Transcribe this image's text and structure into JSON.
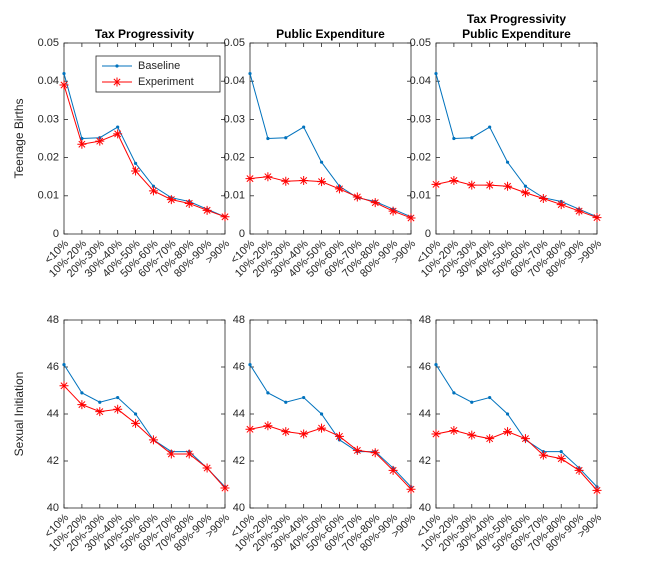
{
  "chart_data": [
    {
      "type": "line",
      "title": "Tax Progressivity",
      "y_label": "Teenage Births",
      "categories": [
        "<10%",
        "10%-20%",
        "20%-30%",
        "30%-40%",
        "40%-50%",
        "50%-60%",
        "60%-70%",
        "70%-80%",
        "80%-90%",
        ">90%"
      ],
      "series": [
        {
          "name": "Baseline",
          "color": "#0072bd",
          "values": [
            0.042,
            0.025,
            0.0252,
            0.028,
            0.0185,
            0.0125,
            0.0095,
            0.0085,
            0.0065,
            0.0045
          ]
        },
        {
          "name": "Experiment",
          "color": "#ff0000",
          "values": [
            0.039,
            0.0235,
            0.0243,
            0.0262,
            0.0165,
            0.0113,
            0.009,
            0.008,
            0.0062,
            0.0045
          ]
        }
      ],
      "ylim": [
        0,
        0.05
      ],
      "yticks": [
        0,
        0.01,
        0.02,
        0.03,
        0.04,
        0.05
      ],
      "legend": "northeast"
    },
    {
      "type": "line",
      "title": "Public Expenditure",
      "categories": [
        "<10%",
        "10%-20%",
        "20%-30%",
        "30%-40%",
        "40%-50%",
        "50%-60%",
        "60%-70%",
        "70%-80%",
        "80%-90%",
        ">90%"
      ],
      "series": [
        {
          "color": "#0072bd",
          "values": [
            0.042,
            0.025,
            0.0252,
            0.028,
            0.0188,
            0.0125,
            0.0095,
            0.0085,
            0.0065,
            0.0045
          ]
        },
        {
          "color": "#ff0000",
          "values": [
            0.0145,
            0.015,
            0.0138,
            0.014,
            0.0137,
            0.0118,
            0.0097,
            0.0082,
            0.006,
            0.0042
          ]
        }
      ],
      "ylim": [
        0,
        0.05
      ],
      "yticks": [
        0,
        0.01,
        0.02,
        0.03,
        0.04,
        0.05
      ]
    },
    {
      "type": "line",
      "title": [
        "Tax Progressivity",
        "Public Expenditure"
      ],
      "categories": [
        "<10%",
        "10%-20%",
        "20%-30%",
        "30%-40%",
        "40%-50%",
        "50%-60%",
        "60%-70%",
        "70%-80%",
        "80%-90%",
        ">90%"
      ],
      "series": [
        {
          "color": "#0072bd",
          "values": [
            0.042,
            0.025,
            0.0252,
            0.028,
            0.0188,
            0.0125,
            0.0095,
            0.0085,
            0.0065,
            0.0045
          ]
        },
        {
          "color": "#ff0000",
          "values": [
            0.013,
            0.014,
            0.0128,
            0.0128,
            0.0125,
            0.0108,
            0.0093,
            0.0077,
            0.006,
            0.0043
          ]
        }
      ],
      "ylim": [
        0,
        0.05
      ],
      "yticks": [
        0,
        0.01,
        0.02,
        0.03,
        0.04,
        0.05
      ]
    },
    {
      "type": "line",
      "y_label": "Sexual Initiation",
      "categories": [
        "<10%",
        "10%-20%",
        "20%-30%",
        "30%-40%",
        "40%-50%",
        "50%-60%",
        "60%-70%",
        "70%-80%",
        "80%-90%",
        ">90%"
      ],
      "series": [
        {
          "color": "#0072bd",
          "values": [
            46.1,
            44.9,
            44.5,
            44.7,
            44.0,
            42.9,
            42.4,
            42.4,
            41.7,
            40.9
          ]
        },
        {
          "color": "#ff0000",
          "values": [
            45.2,
            44.4,
            44.1,
            44.2,
            43.6,
            42.9,
            42.3,
            42.3,
            41.7,
            40.85
          ]
        }
      ],
      "ylim": [
        40,
        48
      ],
      "yticks": [
        40,
        42,
        44,
        46,
        48
      ]
    },
    {
      "type": "line",
      "categories": [
        "<10%",
        "10%-20%",
        "20%-30%",
        "30%-40%",
        "40%-50%",
        "50%-60%",
        "60%-70%",
        "70%-80%",
        "80%-90%",
        ">90%"
      ],
      "series": [
        {
          "color": "#0072bd",
          "values": [
            46.1,
            44.9,
            44.5,
            44.7,
            44.0,
            42.9,
            42.4,
            42.4,
            41.7,
            40.9
          ]
        },
        {
          "color": "#ff0000",
          "values": [
            43.35,
            43.5,
            43.25,
            43.15,
            43.4,
            43.05,
            42.45,
            42.35,
            41.6,
            40.8
          ]
        }
      ],
      "ylim": [
        40,
        48
      ],
      "yticks": [
        40,
        42,
        44,
        46,
        48
      ]
    },
    {
      "type": "line",
      "categories": [
        "<10%",
        "10%-20%",
        "20%-30%",
        "30%-40%",
        "40%-50%",
        "50%-60%",
        "60%-70%",
        "70%-80%",
        "80%-90%",
        ">90%"
      ],
      "series": [
        {
          "color": "#0072bd",
          "values": [
            46.1,
            44.9,
            44.5,
            44.7,
            44.0,
            42.9,
            42.4,
            42.4,
            41.7,
            40.9
          ]
        },
        {
          "color": "#ff0000",
          "values": [
            43.15,
            43.3,
            43.1,
            42.95,
            43.25,
            42.95,
            42.25,
            42.1,
            41.6,
            40.75
          ]
        }
      ],
      "ylim": [
        40,
        48
      ],
      "yticks": [
        40,
        42,
        44,
        46,
        48
      ]
    }
  ]
}
